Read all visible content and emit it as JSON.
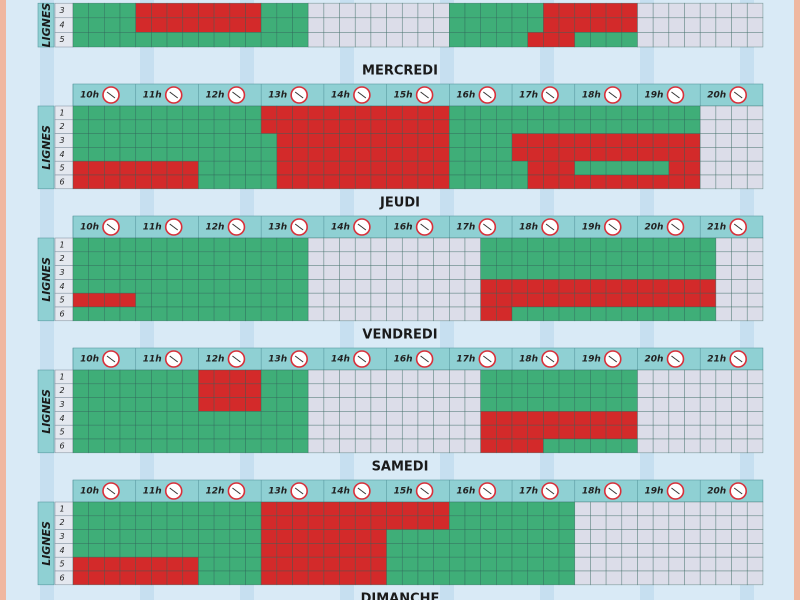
{
  "sections": [
    {
      "lanes": [
        {
          "label": "3",
          "cells": [
            [
              "g",
              4
            ],
            [
              "r",
              8
            ],
            [
              "g",
              3
            ],
            [
              "x",
              9
            ],
            [
              "g",
              6
            ],
            [
              "r",
              6
            ],
            [
              "x",
              8
            ]
          ]
        },
        {
          "label": "4",
          "cells": [
            [
              "g",
              4
            ],
            [
              "r",
              8
            ],
            [
              "g",
              3
            ],
            [
              "x",
              9
            ],
            [
              "g",
              6
            ],
            [
              "r",
              6
            ],
            [
              "x",
              8
            ]
          ]
        },
        {
          "label": "5",
          "cells": [
            [
              "g",
              15
            ],
            [
              "x",
              9
            ],
            [
              "g",
              5
            ],
            [
              "r",
              3
            ],
            [
              "g",
              4
            ],
            [
              "x",
              8
            ]
          ]
        }
      ],
      "lanes_label": "LIGNES"
    },
    {
      "title": "MERCREDI",
      "hours": [
        "10h",
        "11h",
        "12h",
        "13h",
        "14h",
        "15h",
        "16h",
        "17h",
        "18h",
        "19h",
        "20h"
      ],
      "lanes_label": "LIGNES",
      "lanes": [
        {
          "label": "1",
          "cells": [
            [
              "g",
              12
            ],
            [
              "r",
              12
            ],
            [
              "g",
              16
            ],
            [
              "x",
              4
            ]
          ]
        },
        {
          "label": "2",
          "cells": [
            [
              "g",
              12
            ],
            [
              "r",
              12
            ],
            [
              "g",
              16
            ],
            [
              "x",
              4
            ]
          ]
        },
        {
          "label": "3",
          "cells": [
            [
              "g",
              13
            ],
            [
              "r",
              11
            ],
            [
              "g",
              4
            ],
            [
              "r",
              12
            ],
            [
              "x",
              4
            ]
          ]
        },
        {
          "label": "4",
          "cells": [
            [
              "g",
              13
            ],
            [
              "r",
              11
            ],
            [
              "g",
              4
            ],
            [
              "r",
              12
            ],
            [
              "x",
              4
            ]
          ]
        },
        {
          "label": "5",
          "cells": [
            [
              "r",
              8
            ],
            [
              "g",
              5
            ],
            [
              "r",
              11
            ],
            [
              "g",
              5
            ],
            [
              "r",
              3
            ],
            [
              "g",
              6
            ],
            [
              "r",
              2
            ],
            [
              "x",
              4
            ]
          ]
        },
        {
          "label": "6",
          "cells": [
            [
              "r",
              8
            ],
            [
              "g",
              5
            ],
            [
              "r",
              11
            ],
            [
              "g",
              5
            ],
            [
              "r",
              11
            ],
            [
              "x",
              4
            ]
          ]
        }
      ]
    },
    {
      "title": "JEUDI",
      "hours": [
        "10h",
        "11h",
        "12h",
        "13h",
        "14h",
        "16h",
        "17h",
        "18h",
        "19h",
        "20h",
        "21h"
      ],
      "lanes_label": "LIGNES",
      "lanes": [
        {
          "label": "1",
          "cells": [
            [
              "g",
              15
            ],
            [
              "x",
              11
            ],
            [
              "g",
              15
            ],
            [
              "x",
              3
            ]
          ]
        },
        {
          "label": "2",
          "cells": [
            [
              "g",
              15
            ],
            [
              "x",
              11
            ],
            [
              "g",
              15
            ],
            [
              "x",
              3
            ]
          ]
        },
        {
          "label": "3",
          "cells": [
            [
              "g",
              15
            ],
            [
              "x",
              11
            ],
            [
              "g",
              15
            ],
            [
              "x",
              3
            ]
          ]
        },
        {
          "label": "4",
          "cells": [
            [
              "g",
              15
            ],
            [
              "x",
              11
            ],
            [
              "r",
              15
            ],
            [
              "x",
              3
            ]
          ]
        },
        {
          "label": "5",
          "cells": [
            [
              "r",
              4
            ],
            [
              "g",
              11
            ],
            [
              "x",
              11
            ],
            [
              "r",
              15
            ],
            [
              "x",
              3
            ]
          ]
        },
        {
          "label": "6",
          "cells": [
            [
              "g",
              15
            ],
            [
              "x",
              11
            ],
            [
              "r",
              2
            ],
            [
              "g",
              13
            ],
            [
              "x",
              3
            ]
          ]
        }
      ]
    },
    {
      "title": "VENDREDI",
      "hours": [
        "10h",
        "11h",
        "12h",
        "13h",
        "14h",
        "16h",
        "17h",
        "18h",
        "19h",
        "20h",
        "21h"
      ],
      "lanes_label": "LIGNES",
      "lanes": [
        {
          "label": "1",
          "cells": [
            [
              "g",
              8
            ],
            [
              "r",
              4
            ],
            [
              "g",
              3
            ],
            [
              "x",
              11
            ],
            [
              "g",
              10
            ],
            [
              "x",
              8
            ]
          ]
        },
        {
          "label": "2",
          "cells": [
            [
              "g",
              8
            ],
            [
              "r",
              4
            ],
            [
              "g",
              3
            ],
            [
              "x",
              11
            ],
            [
              "g",
              10
            ],
            [
              "x",
              8
            ]
          ]
        },
        {
          "label": "3",
          "cells": [
            [
              "g",
              8
            ],
            [
              "r",
              4
            ],
            [
              "g",
              3
            ],
            [
              "x",
              11
            ],
            [
              "g",
              10
            ],
            [
              "x",
              8
            ]
          ]
        },
        {
          "label": "4",
          "cells": [
            [
              "g",
              15
            ],
            [
              "x",
              11
            ],
            [
              "r",
              10
            ],
            [
              "x",
              8
            ]
          ]
        },
        {
          "label": "5",
          "cells": [
            [
              "g",
              15
            ],
            [
              "x",
              11
            ],
            [
              "r",
              10
            ],
            [
              "x",
              8
            ]
          ]
        },
        {
          "label": "6",
          "cells": [
            [
              "g",
              15
            ],
            [
              "x",
              11
            ],
            [
              "r",
              4
            ],
            [
              "g",
              6
            ],
            [
              "x",
              8
            ]
          ]
        }
      ]
    },
    {
      "title": "SAMEDI",
      "hours": [
        "10h",
        "11h",
        "12h",
        "13h",
        "14h",
        "15h",
        "16h",
        "17h",
        "18h",
        "19h",
        "20h"
      ],
      "lanes_label": "LIGNES",
      "lanes": [
        {
          "label": "1",
          "cells": [
            [
              "g",
              12
            ],
            [
              "r",
              12
            ],
            [
              "g",
              8
            ],
            [
              "x",
              12
            ]
          ]
        },
        {
          "label": "2",
          "cells": [
            [
              "g",
              12
            ],
            [
              "r",
              12
            ],
            [
              "g",
              8
            ],
            [
              "x",
              12
            ]
          ]
        },
        {
          "label": "3",
          "cells": [
            [
              "g",
              12
            ],
            [
              "r",
              8
            ],
            [
              "g",
              12
            ],
            [
              "x",
              12
            ]
          ]
        },
        {
          "label": "4",
          "cells": [
            [
              "g",
              12
            ],
            [
              "r",
              8
            ],
            [
              "g",
              12
            ],
            [
              "x",
              12
            ]
          ]
        },
        {
          "label": "5",
          "cells": [
            [
              "r",
              8
            ],
            [
              "g",
              4
            ],
            [
              "r",
              8
            ],
            [
              "g",
              12
            ],
            [
              "x",
              12
            ]
          ]
        },
        {
          "label": "6",
          "cells": [
            [
              "r",
              8
            ],
            [
              "g",
              4
            ],
            [
              "r",
              8
            ],
            [
              "g",
              12
            ],
            [
              "x",
              12
            ]
          ]
        }
      ]
    },
    {
      "title": "DIMANCHE"
    }
  ]
}
